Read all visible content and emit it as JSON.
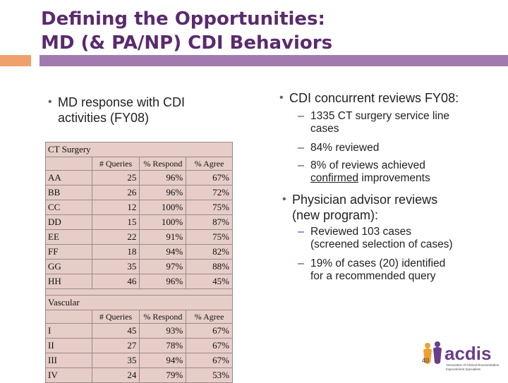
{
  "slide": {
    "title_line1": "Defining the Opportunities:",
    "title_line2": "MD (& PA/NP) CDI Behaviors",
    "left_bullet_line1": "MD response with CDI",
    "left_bullet_line2": "activities (FY08)",
    "right": {
      "bullet1": "CDI concurrent reviews FY08:",
      "sub1_line1": "1335 CT surgery service line",
      "sub1_line2": "cases",
      "sub2": "84% reviewed",
      "sub3_line1": "8% of reviews achieved",
      "sub3_underlined": "confirmed",
      "sub3_rest": " improvements",
      "bullet2_line1": "Physician advisor reviews",
      "bullet2_line2": "(new program):",
      "sub4_line1": "Reviewed 103 cases",
      "sub4_line2": "(screened selection of cases)",
      "sub5_line1": "19% of cases (20) identified",
      "sub5_line2": "for a recommended query"
    },
    "page_number": "40",
    "colors": {
      "title": "#5b2a6e",
      "orange_bar": "#f0a06a",
      "purple_bar": "#a27ab0",
      "table_bg": "#e6cdc8"
    }
  },
  "table": {
    "section1": "CT Surgery",
    "section2": "Vascular",
    "headers": [
      "# Queries",
      "% Respond",
      "% Agree"
    ],
    "ct_rows": [
      [
        "AA",
        "25",
        "96%",
        "67%"
      ],
      [
        "BB",
        "26",
        "96%",
        "72%"
      ],
      [
        "CC",
        "12",
        "100%",
        "75%"
      ],
      [
        "DD",
        "15",
        "100%",
        "87%"
      ],
      [
        "EE",
        "22",
        "91%",
        "75%"
      ],
      [
        "FF",
        "18",
        "94%",
        "82%"
      ],
      [
        "GG",
        "35",
        "97%",
        "88%"
      ],
      [
        "HH",
        "46",
        "96%",
        "45%"
      ]
    ],
    "vasc_rows": [
      [
        "I",
        "45",
        "93%",
        "67%"
      ],
      [
        "II",
        "27",
        "78%",
        "67%"
      ],
      [
        "III",
        "35",
        "94%",
        "67%"
      ],
      [
        "IV",
        "24",
        "79%",
        "53%"
      ]
    ]
  },
  "logo": {
    "text": "acdis",
    "tagline_line1": "Association of Clinical Documentation",
    "tagline_line2": "Improvement Specialists",
    "icon": "people-figures-icon"
  }
}
